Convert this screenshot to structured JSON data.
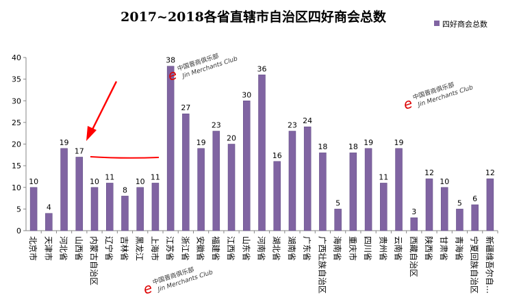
{
  "chart_data": {
    "type": "bar",
    "title": "2017~2018各省直辖市自治区四好商会总数",
    "legend": {
      "position": "top-right",
      "entries": [
        "四好商会总数"
      ]
    },
    "series": [
      {
        "name": "四好商会总数",
        "color": "#8064A2",
        "values": [
          10,
          4,
          19,
          17,
          10,
          11,
          8,
          10,
          11,
          38,
          27,
          19,
          23,
          20,
          30,
          36,
          16,
          23,
          24,
          18,
          5,
          18,
          19,
          11,
          19,
          3,
          12,
          10,
          5,
          6,
          12
        ]
      }
    ],
    "categories": [
      "北京市",
      "天津市",
      "河北省",
      "山西省",
      "内蒙古自治区",
      "辽宁省",
      "吉林省",
      "黑龙江",
      "上海市",
      "江苏省",
      "浙江省",
      "安徽省",
      "福建省",
      "江西省",
      "山东省",
      "河南省",
      "湖北省",
      "湖南省",
      "广东省",
      "广西壮族自治区",
      "海南省",
      "重庆市",
      "四川省",
      "贵州省",
      "云南省",
      "西藏自治区",
      "陕西省",
      "甘肃省",
      "青海省",
      "宁夏回族自治区",
      "新疆维吾尔自…"
    ],
    "yticks": [
      0,
      5,
      10,
      15,
      20,
      25,
      30,
      35,
      40
    ],
    "ylim": [
      0,
      40
    ],
    "grid": false,
    "annotation_color": "#FF0000"
  },
  "watermark": {
    "cn": "中国晋商俱乐部",
    "en": "Jin Merchants Club"
  }
}
